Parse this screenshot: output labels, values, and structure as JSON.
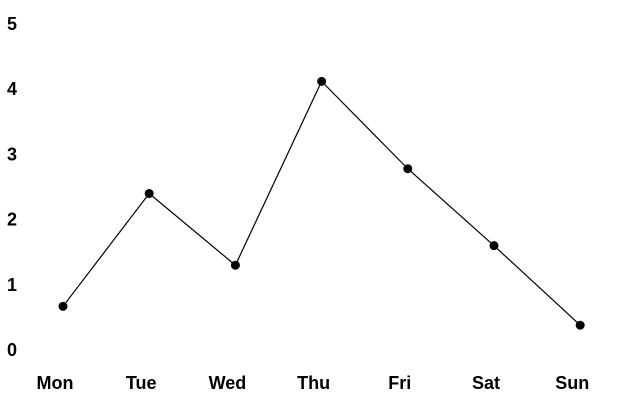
{
  "chart_data": {
    "type": "line",
    "categories": [
      "Mon",
      "Tue",
      "Wed",
      "Thu",
      "Fri",
      "Sat",
      "Sun"
    ],
    "values": [
      0.67,
      2.4,
      1.3,
      4.12,
      2.78,
      1.6,
      0.38
    ],
    "y_ticks": [
      "0",
      "1",
      "2",
      "3",
      "4",
      "5"
    ],
    "ylim": [
      0,
      5
    ],
    "grid": false,
    "legend": "none",
    "title": "",
    "xlabel": "",
    "ylabel": "",
    "line_color": "#000000",
    "marker_color": "#000000"
  }
}
